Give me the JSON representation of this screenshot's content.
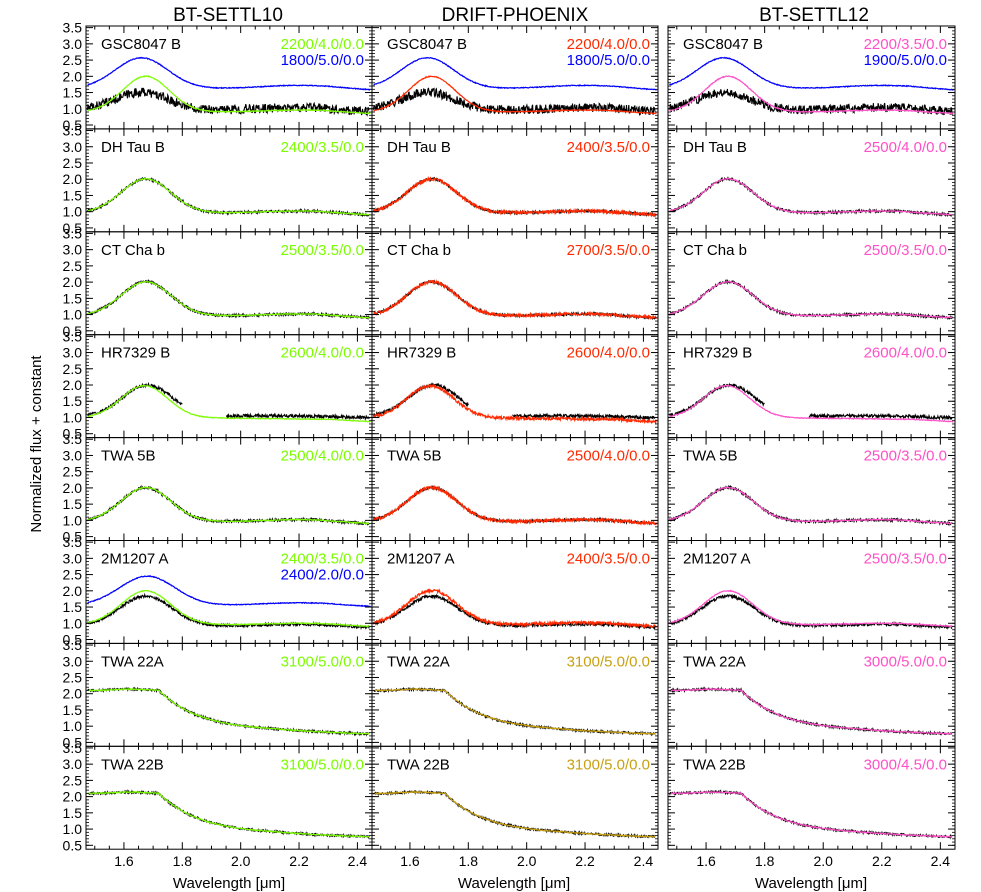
{
  "chart_data": {
    "type": "line",
    "ylabel": "Normalized flux + constant",
    "xlabel": "Wavelength [μm]",
    "xlim": [
      1.47,
      2.45
    ],
    "ylim": [
      0.38,
      3.55
    ],
    "xticks": [
      "1.6",
      "1.8",
      "2.0",
      "2.2",
      "2.4"
    ],
    "xtick_values": [
      1.6,
      1.8,
      2.0,
      2.2,
      2.4
    ],
    "yticks": [
      "0.5",
      "1.0",
      "1.5",
      "2.0",
      "2.5",
      "3.0",
      "3.5"
    ],
    "ytick_values": [
      0.5,
      1.0,
      1.5,
      2.0,
      2.5,
      3.0,
      3.5
    ],
    "model_colors": {
      "black": "#000000",
      "green": "#7CFC00",
      "blue": "#0000FF",
      "red": "#FF2A00",
      "gold": "#C8A010",
      "pink": "#FF50C8"
    },
    "columns": [
      {
        "title": "BT-SETTL10"
      },
      {
        "title": "DRIFT-PHOENIX"
      },
      {
        "title": "BT-SETTL12"
      }
    ],
    "panels": [
      [
        {
          "object": "GSC8047 B",
          "labels": [
            {
              "text": "2200/4.0/0.0",
              "color": "#7CFC00"
            },
            {
              "text": "1800/5.0/0.0",
              "color": "#0000FF"
            }
          ],
          "obs_shape": "gsc",
          "models": [
            {
              "color": "#7CFC00",
              "shape": "gsc_peaky"
            },
            {
              "color": "#0000FF",
              "shape": "gsc_blue"
            }
          ]
        },
        {
          "object": "GSC8047 B",
          "labels": [
            {
              "text": "2200/4.0/0.0",
              "color": "#FF2A00"
            },
            {
              "text": "1800/5.0/0.0",
              "color": "#0000FF"
            }
          ],
          "obs_shape": "gsc",
          "models": [
            {
              "color": "#FF2A00",
              "shape": "gsc_peaky"
            },
            {
              "color": "#0000FF",
              "shape": "gsc_blue"
            }
          ]
        },
        {
          "object": "GSC8047 B",
          "labels": [
            {
              "text": "2200/3.5/0.0",
              "color": "#FF50C8"
            },
            {
              "text": "1900/5.0/0.0",
              "color": "#0000FF"
            }
          ],
          "obs_shape": "gsc",
          "models": [
            {
              "color": "#FF50C8",
              "shape": "gsc_peaky"
            },
            {
              "color": "#0000FF",
              "shape": "gsc_blue"
            }
          ]
        }
      ],
      [
        {
          "object": "DH Tau B",
          "labels": [
            {
              "text": "2400/3.5/0.0",
              "color": "#7CFC00"
            }
          ],
          "obs_shape": "late",
          "models": [
            {
              "color": "#7CFC00",
              "shape": "late"
            }
          ]
        },
        {
          "object": "DH Tau B",
          "labels": [
            {
              "text": "2400/3.5/0.0",
              "color": "#FF2A00"
            }
          ],
          "obs_shape": "late",
          "models": [
            {
              "color": "#FF2A00",
              "shape": "late_noisy"
            }
          ]
        },
        {
          "object": "DH Tau B",
          "labels": [
            {
              "text": "2500/4.0/0.0",
              "color": "#FF50C8"
            }
          ],
          "obs_shape": "late",
          "models": [
            {
              "color": "#FF50C8",
              "shape": "late"
            }
          ]
        }
      ],
      [
        {
          "object": "CT Cha b",
          "labels": [
            {
              "text": "2500/3.5/0.0",
              "color": "#7CFC00"
            }
          ],
          "obs_shape": "late",
          "models": [
            {
              "color": "#7CFC00",
              "shape": "late"
            }
          ]
        },
        {
          "object": "CT Cha b",
          "labels": [
            {
              "text": "2700/3.5/0.0",
              "color": "#FF2A00"
            }
          ],
          "obs_shape": "late",
          "models": [
            {
              "color": "#FF2A00",
              "shape": "late_noisy"
            }
          ]
        },
        {
          "object": "CT Cha b",
          "labels": [
            {
              "text": "2500/3.5/0.0",
              "color": "#FF50C8"
            }
          ],
          "obs_shape": "late",
          "models": [
            {
              "color": "#FF50C8",
              "shape": "late"
            }
          ]
        }
      ],
      [
        {
          "object": "HR7329 B",
          "labels": [
            {
              "text": "2600/4.0/0.0",
              "color": "#7CFC00"
            }
          ],
          "obs_shape": "hr",
          "models": [
            {
              "color": "#7CFC00",
              "shape": "hr_model"
            }
          ]
        },
        {
          "object": "HR7329 B",
          "labels": [
            {
              "text": "2600/4.0/0.0",
              "color": "#FF2A00"
            }
          ],
          "obs_shape": "hr",
          "models": [
            {
              "color": "#FF2A00",
              "shape": "hr_model_noisy"
            }
          ]
        },
        {
          "object": "HR7329 B",
          "labels": [
            {
              "text": "2600/4.0/0.0",
              "color": "#FF50C8"
            }
          ],
          "obs_shape": "hr",
          "models": [
            {
              "color": "#FF50C8",
              "shape": "hr_model"
            }
          ]
        }
      ],
      [
        {
          "object": "TWA 5B",
          "labels": [
            {
              "text": "2500/4.0/0.0",
              "color": "#7CFC00"
            }
          ],
          "obs_shape": "late",
          "models": [
            {
              "color": "#7CFC00",
              "shape": "late"
            }
          ]
        },
        {
          "object": "TWA 5B",
          "labels": [
            {
              "text": "2500/4.0/0.0",
              "color": "#FF2A00"
            }
          ],
          "obs_shape": "late",
          "models": [
            {
              "color": "#FF2A00",
              "shape": "late_noisy"
            }
          ]
        },
        {
          "object": "TWA 5B",
          "labels": [
            {
              "text": "2500/3.5/0.0",
              "color": "#FF50C8"
            }
          ],
          "obs_shape": "late",
          "models": [
            {
              "color": "#FF50C8",
              "shape": "late"
            }
          ]
        }
      ],
      [
        {
          "object": "2M1207 A",
          "labels": [
            {
              "text": "2400/3.5/0.0",
              "color": "#7CFC00"
            },
            {
              "text": "2400/2.0/0.0",
              "color": "#0000FF"
            }
          ],
          "obs_shape": "m1207",
          "models": [
            {
              "color": "#7CFC00",
              "shape": "m1207_green"
            },
            {
              "color": "#0000FF",
              "shape": "m1207_blue"
            }
          ]
        },
        {
          "object": "2M1207 A",
          "labels": [
            {
              "text": "2400/3.5/0.0",
              "color": "#FF2A00"
            }
          ],
          "obs_shape": "m1207",
          "models": [
            {
              "color": "#FF2A00",
              "shape": "late_noisy"
            }
          ]
        },
        {
          "object": "2M1207 A",
          "labels": [
            {
              "text": "2500/3.5/0.0",
              "color": "#FF50C8"
            }
          ],
          "obs_shape": "m1207",
          "models": [
            {
              "color": "#FF50C8",
              "shape": "m1207_green"
            }
          ]
        }
      ],
      [
        {
          "object": "TWA 22A",
          "labels": [
            {
              "text": "3100/5.0/0.0",
              "color": "#7CFC00"
            }
          ],
          "obs_shape": "early",
          "models": [
            {
              "color": "#7CFC00",
              "shape": "early"
            }
          ]
        },
        {
          "object": "TWA 22A",
          "labels": [
            {
              "text": "3100/5.0/0.0",
              "color": "#C8A010"
            }
          ],
          "obs_shape": "early",
          "models": [
            {
              "color": "#C8A010",
              "shape": "early"
            }
          ]
        },
        {
          "object": "TWA 22A",
          "labels": [
            {
              "text": "3000/5.0/0.0",
              "color": "#FF50C8"
            }
          ],
          "obs_shape": "early",
          "models": [
            {
              "color": "#FF50C8",
              "shape": "early"
            }
          ]
        }
      ],
      [
        {
          "object": "TWA 22B",
          "labels": [
            {
              "text": "3100/5.0/0.0",
              "color": "#7CFC00"
            }
          ],
          "obs_shape": "early",
          "models": [
            {
              "color": "#7CFC00",
              "shape": "early"
            }
          ]
        },
        {
          "object": "TWA 22B",
          "labels": [
            {
              "text": "3100/5.0/0.0",
              "color": "#C8A010"
            }
          ],
          "obs_shape": "early",
          "models": [
            {
              "color": "#C8A010",
              "shape": "early"
            }
          ]
        },
        {
          "object": "TWA 22B",
          "labels": [
            {
              "text": "3000/4.5/0.0",
              "color": "#FF50C8"
            }
          ],
          "obs_shape": "early",
          "models": [
            {
              "color": "#FF50C8",
              "shape": "early"
            }
          ]
        }
      ]
    ]
  }
}
